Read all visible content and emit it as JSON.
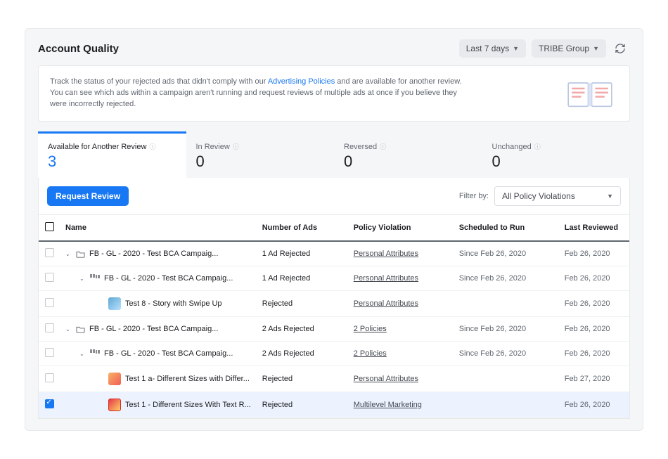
{
  "header": {
    "title": "Account Quality",
    "date_range": "Last 7 days",
    "org": "TRIBE Group"
  },
  "banner": {
    "pre": "Track the status of your rejected ads that didn't comply with our ",
    "link": "Advertising Policies",
    "post": " and are available for another review. You can see which ads within a campaign aren't running and request reviews of multiple ads at once if you believe they were incorrectly rejected."
  },
  "tabs": [
    {
      "label": "Available for Another Review",
      "count": "3",
      "active": true
    },
    {
      "label": "In Review",
      "count": "0",
      "active": false
    },
    {
      "label": "Reversed",
      "count": "0",
      "active": false
    },
    {
      "label": "Unchanged",
      "count": "0",
      "active": false
    }
  ],
  "toolbar": {
    "request_label": "Request Review",
    "filter_label": "Filter by:",
    "filter_value": "All Policy Violations"
  },
  "columns": {
    "name": "Name",
    "num": "Number of Ads",
    "pol": "Policy Violation",
    "sch": "Scheduled to Run",
    "rev": "Last Reviewed"
  },
  "rows": [
    {
      "level": 0,
      "icon": "folder",
      "name": "FB - GL - 2020 - Test BCA Campaig...",
      "num": "1 Ad Rejected",
      "pol": "Personal Attributes",
      "sch": "Since Feb 26, 2020",
      "rev": "Feb 26, 2020",
      "caret": true,
      "selected": false
    },
    {
      "level": 1,
      "icon": "group",
      "name": "FB - GL - 2020 - Test BCA Campaig...",
      "num": "1 Ad Rejected",
      "pol": "Personal Attributes",
      "sch": "Since Feb 26, 2020",
      "rev": "Feb 26, 2020",
      "caret": true,
      "selected": false
    },
    {
      "level": 2,
      "icon": "thumb-b",
      "name": "Test 8 - Story with Swipe Up",
      "num": "Rejected",
      "pol": "Personal Attributes",
      "sch": "",
      "rev": "Feb 26, 2020",
      "caret": false,
      "selected": false
    },
    {
      "level": 0,
      "icon": "folder",
      "name": "FB - GL - 2020 - Test BCA Campaig...",
      "num": "2 Ads Rejected",
      "pol": "2 Policies",
      "sch": "Since Feb 26, 2020",
      "rev": "Feb 26, 2020",
      "caret": true,
      "selected": false
    },
    {
      "level": 1,
      "icon": "group",
      "name": "FB - GL - 2020 - Test BCA Campaig...",
      "num": "2 Ads Rejected",
      "pol": "2 Policies",
      "sch": "Since Feb 26, 2020",
      "rev": "Feb 26, 2020",
      "caret": true,
      "selected": false
    },
    {
      "level": 2,
      "icon": "thumb-a",
      "name": "Test 1 a- Different Sizes with Differ...",
      "num": "Rejected",
      "pol": "Personal Attributes",
      "sch": "",
      "rev": "Feb 27, 2020",
      "caret": false,
      "selected": false
    },
    {
      "level": 2,
      "icon": "thumb-c",
      "name": "Test 1 - Different Sizes With Text R...",
      "num": "Rejected",
      "pol": "Multilevel Marketing",
      "sch": "",
      "rev": "Feb 26, 2020",
      "caret": false,
      "selected": true
    }
  ]
}
